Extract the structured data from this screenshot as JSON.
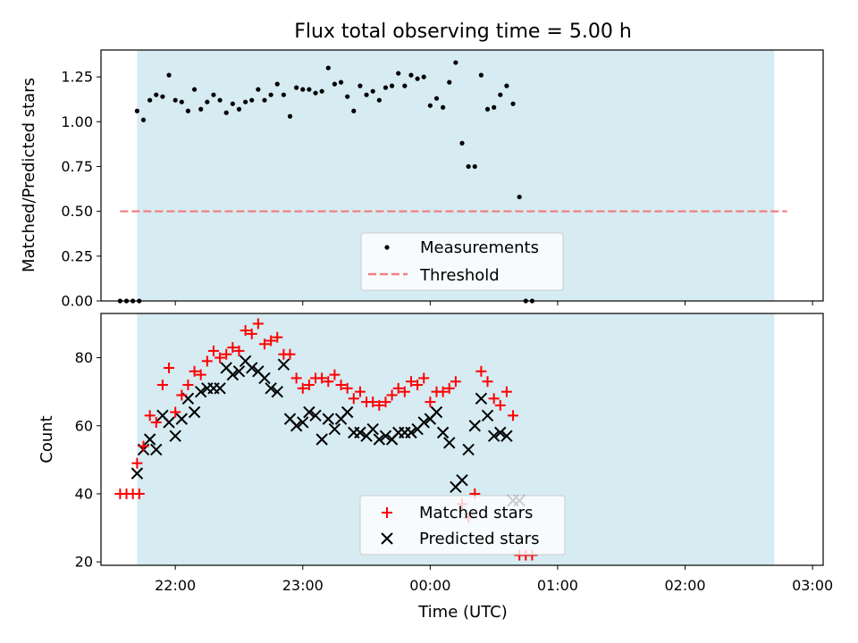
{
  "chart_data": [
    {
      "type": "scatter",
      "title": "Flux total observing time = 5.00 h",
      "xlabel": "",
      "ylabel": "Matched/Predicted stars",
      "xlim": [
        "21:25",
        "03:05"
      ],
      "ylim": [
        0,
        1.4
      ],
      "yticks": [
        "0.00",
        "0.25",
        "0.50",
        "0.75",
        "1.00",
        "1.25"
      ],
      "shaded_region": {
        "x0": "21:42",
        "x1": "02:42",
        "color": "#add8e6"
      },
      "series": [
        {
          "name": "Measurements",
          "marker": "dot",
          "color": "#000000",
          "points": [
            [
              "21:34",
              0
            ],
            [
              "21:37",
              0
            ],
            [
              "21:40",
              0
            ],
            [
              "21:43",
              0
            ],
            [
              "21:42",
              1.06
            ],
            [
              "21:45",
              1.01
            ],
            [
              "21:48",
              1.12
            ],
            [
              "21:51",
              1.15
            ],
            [
              "21:54",
              1.14
            ],
            [
              "21:57",
              1.26
            ],
            [
              "22:00",
              1.12
            ],
            [
              "22:03",
              1.11
            ],
            [
              "22:06",
              1.06
            ],
            [
              "22:09",
              1.18
            ],
            [
              "22:12",
              1.07
            ],
            [
              "22:15",
              1.11
            ],
            [
              "22:18",
              1.15
            ],
            [
              "22:21",
              1.12
            ],
            [
              "22:24",
              1.05
            ],
            [
              "22:27",
              1.1
            ],
            [
              "22:30",
              1.07
            ],
            [
              "22:33",
              1.11
            ],
            [
              "22:36",
              1.12
            ],
            [
              "22:39",
              1.18
            ],
            [
              "22:42",
              1.12
            ],
            [
              "22:45",
              1.15
            ],
            [
              "22:48",
              1.21
            ],
            [
              "22:51",
              1.15
            ],
            [
              "22:54",
              1.03
            ],
            [
              "22:57",
              1.19
            ],
            [
              "23:00",
              1.18
            ],
            [
              "23:03",
              1.18
            ],
            [
              "23:06",
              1.16
            ],
            [
              "23:09",
              1.17
            ],
            [
              "23:12",
              1.3
            ],
            [
              "23:15",
              1.21
            ],
            [
              "23:18",
              1.22
            ],
            [
              "23:21",
              1.14
            ],
            [
              "23:24",
              1.06
            ],
            [
              "23:27",
              1.2
            ],
            [
              "23:30",
              1.15
            ],
            [
              "23:33",
              1.17
            ],
            [
              "23:36",
              1.12
            ],
            [
              "23:39",
              1.19
            ],
            [
              "23:42",
              1.2
            ],
            [
              "23:45",
              1.27
            ],
            [
              "23:48",
              1.2
            ],
            [
              "23:51",
              1.26
            ],
            [
              "23:54",
              1.24
            ],
            [
              "23:57",
              1.25
            ],
            [
              "00:00",
              1.09
            ],
            [
              "00:03",
              1.13
            ],
            [
              "00:06",
              1.08
            ],
            [
              "00:09",
              1.22
            ],
            [
              "00:12",
              1.33
            ],
            [
              "00:15",
              0.88
            ],
            [
              "00:18",
              0.75
            ],
            [
              "00:21",
              0.75
            ],
            [
              "00:24",
              1.26
            ],
            [
              "00:27",
              1.07
            ],
            [
              "00:30",
              1.08
            ],
            [
              "00:33",
              1.15
            ],
            [
              "00:36",
              1.2
            ],
            [
              "00:39",
              1.1
            ],
            [
              "00:42",
              0.58
            ],
            [
              "00:45",
              0
            ],
            [
              "00:48",
              0
            ]
          ]
        },
        {
          "name": "Threshold",
          "marker": "dashed-line",
          "color": "#f08080",
          "points": [
            [
              "21:34",
              0.5
            ],
            [
              "02:48",
              0.5
            ]
          ]
        }
      ],
      "legend": "lower-center"
    },
    {
      "type": "scatter",
      "title": "",
      "xlabel": "Time (UTC)",
      "ylabel": "Count",
      "xlim": [
        "21:25",
        "03:05"
      ],
      "ylim": [
        19,
        93
      ],
      "xticks": [
        "22:00",
        "23:00",
        "00:00",
        "01:00",
        "02:00",
        "03:00"
      ],
      "yticks": [
        "20",
        "40",
        "60",
        "80"
      ],
      "shaded_region": {
        "x0": "21:42",
        "x1": "02:42",
        "color": "#add8e6"
      },
      "series": [
        {
          "name": "Matched stars",
          "marker": "plus",
          "color": "#ff0000",
          "x": [
            "21:34",
            "21:37",
            "21:40",
            "21:43",
            "21:42",
            "21:45",
            "21:48",
            "21:51",
            "21:54",
            "21:57",
            "22:00",
            "22:03",
            "22:06",
            "22:09",
            "22:12",
            "22:15",
            "22:18",
            "22:21",
            "22:24",
            "22:27",
            "22:30",
            "22:33",
            "22:36",
            "22:39",
            "22:42",
            "22:45",
            "22:48",
            "22:51",
            "22:54",
            "22:57",
            "23:00",
            "23:03",
            "23:06",
            "23:09",
            "23:12",
            "23:15",
            "23:18",
            "23:21",
            "23:24",
            "23:27",
            "23:30",
            "23:33",
            "23:36",
            "23:39",
            "23:42",
            "23:45",
            "23:48",
            "23:51",
            "23:54",
            "23:57",
            "00:00",
            "00:03",
            "00:06",
            "00:09",
            "00:12",
            "00:15",
            "00:18",
            "00:21",
            "00:24",
            "00:27",
            "00:30",
            "00:33",
            "00:36",
            "00:39",
            "00:42",
            "00:45",
            "00:48"
          ],
          "values": [
            40,
            40,
            40,
            40,
            49,
            54,
            63,
            61,
            72,
            77,
            64,
            69,
            72,
            76,
            75,
            79,
            82,
            80,
            81,
            83,
            82,
            88,
            87,
            90,
            84,
            85,
            86,
            81,
            81,
            74,
            71,
            72,
            74,
            74,
            73,
            75,
            72,
            71,
            68,
            70,
            67,
            67,
            66,
            67,
            69,
            71,
            70,
            73,
            72,
            74,
            67,
            70,
            70,
            71,
            73,
            37,
            33,
            40,
            76,
            73,
            68,
            66,
            70,
            63,
            22,
            22,
            22
          ]
        },
        {
          "name": "Predicted stars",
          "marker": "x",
          "color": "#000000",
          "x": [
            "21:42",
            "21:45",
            "21:48",
            "21:51",
            "21:54",
            "21:57",
            "22:00",
            "22:03",
            "22:06",
            "22:09",
            "22:12",
            "22:15",
            "22:18",
            "22:21",
            "22:24",
            "22:27",
            "22:30",
            "22:33",
            "22:36",
            "22:39",
            "22:42",
            "22:45",
            "22:48",
            "22:51",
            "22:54",
            "22:57",
            "23:00",
            "23:03",
            "23:06",
            "23:09",
            "23:12",
            "23:15",
            "23:18",
            "23:21",
            "23:24",
            "23:27",
            "23:30",
            "23:33",
            "23:36",
            "23:39",
            "23:42",
            "23:45",
            "23:48",
            "23:51",
            "23:54",
            "23:57",
            "00:00",
            "00:03",
            "00:06",
            "00:09",
            "00:12",
            "00:15",
            "00:18",
            "00:21",
            "00:24",
            "00:27",
            "00:30",
            "00:33",
            "00:36",
            "00:39",
            "00:42"
          ],
          "values": [
            46,
            53,
            56,
            53,
            63,
            61,
            57,
            62,
            68,
            64,
            70,
            71,
            71,
            71,
            77,
            75,
            76,
            79,
            77,
            76,
            74,
            71,
            70,
            78,
            62,
            60,
            61,
            64,
            63,
            56,
            62,
            59,
            62,
            64,
            58,
            58,
            57,
            59,
            56,
            57,
            56,
            58,
            58,
            58,
            59,
            61,
            62,
            64,
            58,
            55,
            42,
            44,
            53,
            60,
            68,
            63,
            57,
            58,
            57,
            38,
            38
          ]
        }
      ],
      "legend": "lower-center"
    }
  ]
}
